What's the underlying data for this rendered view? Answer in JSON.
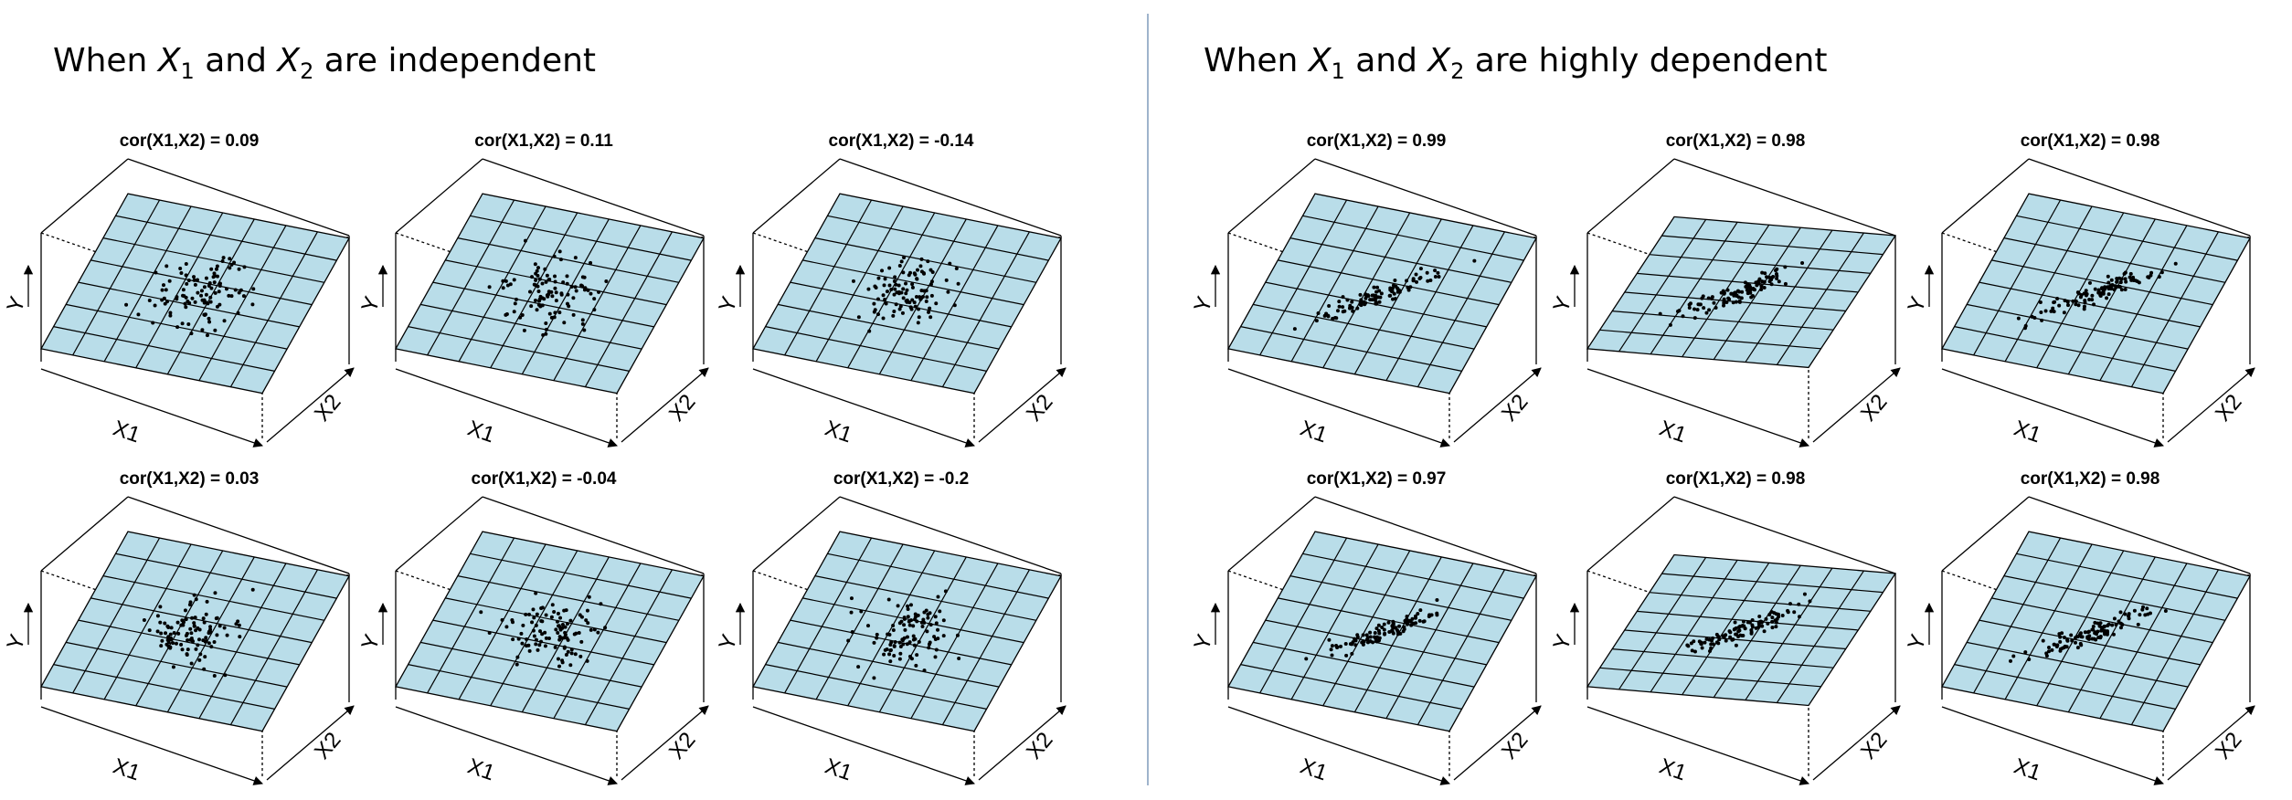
{
  "panels": [
    {
      "title": {
        "before": "When ",
        "var1": "X",
        "sub1": "1",
        "middle": " and ",
        "var2": "X",
        "sub2": "2",
        "after": " are independent"
      },
      "plots": [
        "cor(X1,X2) = 0.09",
        "cor(X1,X2) = 0.11",
        "cor(X1,X2) = -0.14",
        "cor(X1,X2) = 0.03",
        "cor(X1,X2) = -0.04",
        "cor(X1,X2) = -0.2"
      ]
    },
    {
      "title": {
        "before": "When ",
        "var1": "X",
        "sub1": "1",
        "middle": " and ",
        "var2": "X",
        "sub2": "2",
        "after": " are highly dependent"
      },
      "plots": [
        "cor(X1,X2) = 0.99",
        "cor(X1,X2) = 0.98",
        "cor(X1,X2) = 0.98",
        "cor(X1,X2) = 0.97",
        "cor(X1,X2) = 0.98",
        "cor(X1,X2) = 0.98"
      ]
    }
  ],
  "axis_labels": {
    "y": "Y",
    "x1": "X1",
    "x2": "X2"
  }
}
